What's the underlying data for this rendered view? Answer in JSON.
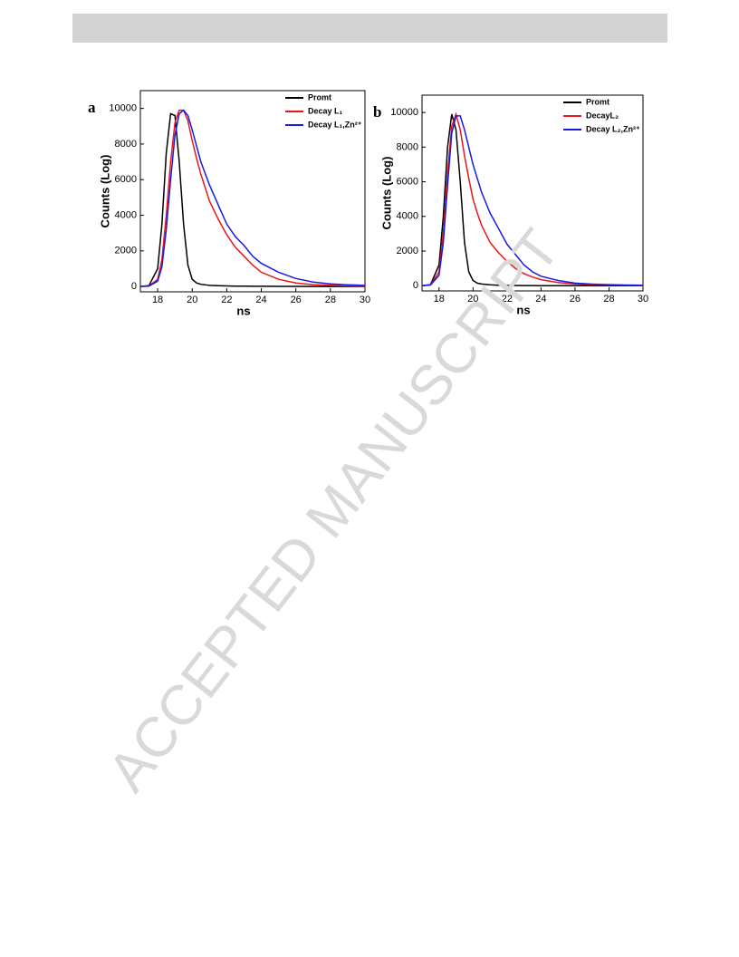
{
  "watermark": "ACCEPTED MANUSCRIPT",
  "chart_data": [
    {
      "type": "line",
      "panel_label": "a",
      "x_label": "ns",
      "y_label": "Counts (Log)",
      "xlim": [
        17,
        30
      ],
      "ylim": [
        -300,
        11000
      ],
      "xticks": [
        18,
        20,
        22,
        24,
        26,
        28,
        30
      ],
      "yticks": [
        0,
        2000,
        4000,
        6000,
        8000,
        10000
      ],
      "legend": "top-right",
      "x": [
        17,
        17.5,
        18,
        18.25,
        18.5,
        18.75,
        19,
        19.25,
        19.5,
        19.75,
        20,
        20.25,
        20.5,
        21,
        21.5,
        22,
        22.5,
        23,
        23.5,
        24,
        25,
        26,
        27,
        28,
        29,
        30
      ],
      "series": [
        {
          "name": "Promt",
          "color": "#000000",
          "values": [
            0,
            50,
            1000,
            3500,
            7500,
            9700,
            9600,
            7000,
            3500,
            1200,
            400,
            200,
            120,
            60,
            40,
            30,
            20,
            15,
            10,
            8,
            5,
            3,
            2,
            1,
            0,
            0
          ]
        },
        {
          "name": "Decay L₁",
          "color": "#e8161b",
          "values": [
            0,
            30,
            400,
            1500,
            4000,
            7000,
            9200,
            9900,
            9900,
            9300,
            8200,
            7200,
            6300,
            4800,
            3800,
            2900,
            2200,
            1700,
            1200,
            800,
            400,
            200,
            100,
            60,
            30,
            20
          ]
        },
        {
          "name": "Decay L₁,Zn²⁺",
          "color": "#1a1ae6",
          "values": [
            0,
            20,
            300,
            1100,
            3200,
            6000,
            8500,
            9700,
            9900,
            9600,
            8800,
            7900,
            7000,
            5700,
            4600,
            3500,
            2800,
            2300,
            1700,
            1300,
            800,
            450,
            250,
            150,
            90,
            60
          ]
        }
      ]
    },
    {
      "type": "line",
      "panel_label": "b",
      "x_label": "ns",
      "y_label": "Counts (Log)",
      "xlim": [
        17,
        30
      ],
      "ylim": [
        -300,
        11000
      ],
      "xticks": [
        18,
        20,
        22,
        24,
        26,
        28,
        30
      ],
      "yticks": [
        0,
        2000,
        4000,
        6000,
        8000,
        10000
      ],
      "legend": "top-right",
      "x": [
        17,
        17.5,
        18,
        18.25,
        18.5,
        18.75,
        19,
        19.25,
        19.5,
        19.75,
        20,
        20.25,
        20.5,
        21,
        21.5,
        22,
        22.5,
        23,
        23.5,
        24,
        25,
        26,
        27,
        28,
        29,
        30
      ],
      "series": [
        {
          "name": "Promt",
          "color": "#000000",
          "values": [
            0,
            60,
            1200,
            4000,
            8000,
            9900,
            9000,
            6000,
            2500,
            800,
            300,
            150,
            100,
            50,
            30,
            20,
            15,
            10,
            8,
            5,
            3,
            2,
            1,
            0,
            0,
            0
          ]
        },
        {
          "name": "DecayL₂",
          "color": "#e8161b",
          "values": [
            0,
            50,
            800,
            3000,
            6500,
            9200,
            9900,
            9000,
            7500,
            6200,
            5000,
            4200,
            3500,
            2500,
            1900,
            1400,
            1000,
            700,
            500,
            350,
            180,
            100,
            60,
            40,
            20,
            10
          ]
        },
        {
          "name": "Decay L₂,Zn²⁺",
          "color": "#1a1ae6",
          "values": [
            0,
            40,
            600,
            2500,
            5800,
            8800,
            9800,
            9800,
            9000,
            8000,
            7000,
            6200,
            5400,
            4200,
            3300,
            2400,
            1800,
            1200,
            800,
            550,
            300,
            150,
            90,
            60,
            40,
            30
          ]
        }
      ]
    }
  ]
}
